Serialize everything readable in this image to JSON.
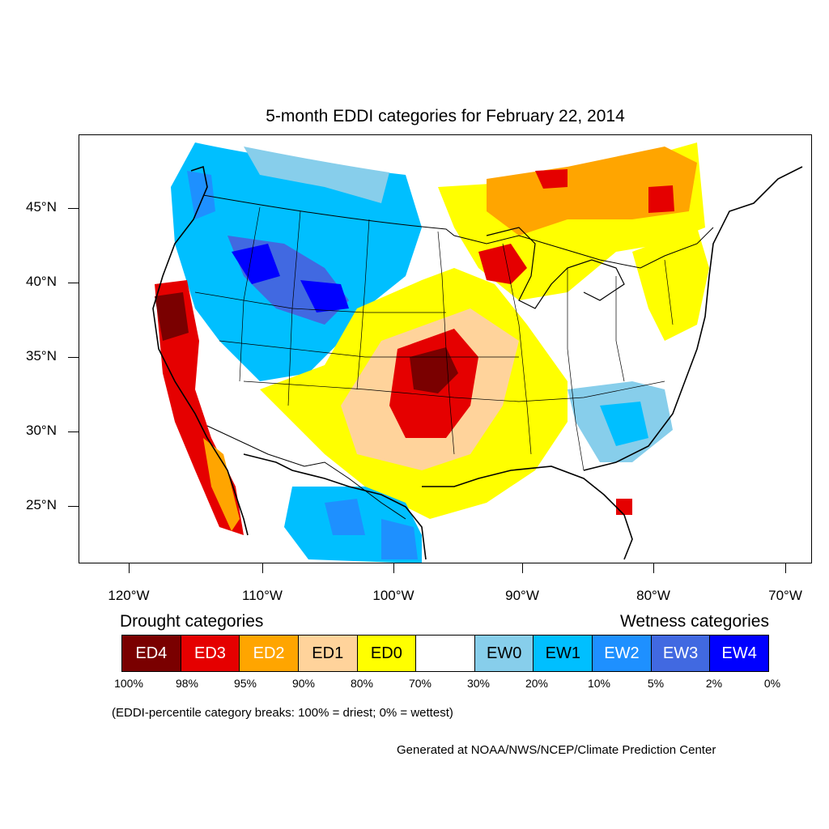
{
  "title": "5-month EDDI categories for February 22, 2014",
  "map": {
    "projection": "Lambert conformal conic, CONUS",
    "lat_labels": [
      "45°N",
      "40°N",
      "35°N",
      "30°N",
      "25°N"
    ],
    "lon_labels": [
      "120°W",
      "110°W",
      "100°W",
      "90°W",
      "80°W",
      "70°W"
    ],
    "regions": [
      {
        "name": "northwest-wet",
        "category": "EW1"
      },
      {
        "name": "northern-rockies-wet",
        "category": "EW3"
      },
      {
        "name": "wyoming-wet",
        "category": "EW4"
      },
      {
        "name": "california-drought",
        "category": "ED3"
      },
      {
        "name": "california-core-drought",
        "category": "ED4"
      },
      {
        "name": "kansas-nebraska-drought",
        "category": "ED3"
      },
      {
        "name": "kansas-core-drought",
        "category": "ED4"
      },
      {
        "name": "great-lakes-drought",
        "category": "ED2"
      },
      {
        "name": "wisconsin-drought",
        "category": "ED3"
      },
      {
        "name": "ontario-drought",
        "category": "ED2"
      },
      {
        "name": "texas-mexico-wet",
        "category": "EW2"
      },
      {
        "name": "southeast-wet",
        "category": "EW1"
      },
      {
        "name": "great-plains-dry",
        "category": "ED0"
      },
      {
        "name": "northeast-dry",
        "category": "ED0"
      }
    ]
  },
  "legend": {
    "drought_heading": "Drought categories",
    "wetness_heading": "Wetness categories",
    "categories": [
      {
        "label": "ED4",
        "color": "#7a0000",
        "text_color": "#ffffff"
      },
      {
        "label": "ED3",
        "color": "#e50000",
        "text_color": "#ffffff"
      },
      {
        "label": "ED2",
        "color": "#ffa500",
        "text_color": "#ffffff"
      },
      {
        "label": "ED1",
        "color": "#ffd39b",
        "text_color": "#000000"
      },
      {
        "label": "ED0",
        "color": "#ffff00",
        "text_color": "#000000"
      },
      {
        "label": "",
        "color": "#ffffff",
        "text_color": "#000000"
      },
      {
        "label": "EW0",
        "color": "#87ceeb",
        "text_color": "#000000"
      },
      {
        "label": "EW1",
        "color": "#00bfff",
        "text_color": "#000000"
      },
      {
        "label": "EW2",
        "color": "#1e90ff",
        "text_color": "#ffffff"
      },
      {
        "label": "EW3",
        "color": "#4169e1",
        "text_color": "#ffffff"
      },
      {
        "label": "EW4",
        "color": "#0000ff",
        "text_color": "#ffffff"
      }
    ],
    "breaks": [
      "100%",
      "98%",
      "95%",
      "90%",
      "80%",
      "70%",
      "30%",
      "20%",
      "10%",
      "5%",
      "2%",
      "0%"
    ]
  },
  "note": "(EDDI-percentile category breaks: 100% = driest; 0% = wettest)",
  "credit": "Generated at NOAA/NWS/NCEP/Climate Prediction Center"
}
